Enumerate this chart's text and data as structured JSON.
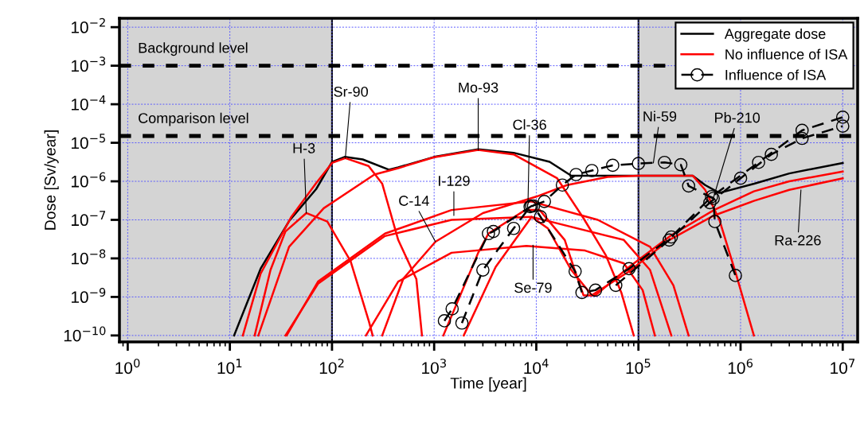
{
  "chart_data": {
    "type": "line",
    "xlabel": "Time [year]",
    "ylabel": "Dose [Sv/year]",
    "log": "xy",
    "grid": true,
    "legend": "top right",
    "xlim": [
      0.83,
      14000000
    ],
    "ylim": [
      6.8e-11,
      0.017
    ],
    "xticks": [
      {
        "value": 1,
        "label": "10$^{0}$"
      },
      {
        "value": 10,
        "label": "10$^{1}$"
      },
      {
        "value": 100,
        "label": "10$^{2}$"
      },
      {
        "value": 1000,
        "label": "10$^{3}$"
      },
      {
        "value": 10000,
        "label": "10$^{4}$"
      },
      {
        "value": 100000,
        "label": "10$^{5}$"
      },
      {
        "value": 1000000,
        "label": "10$^{6}$"
      },
      {
        "value": 10000000,
        "label": "10$^{7}$"
      }
    ],
    "yticks": [
      {
        "value": 1e-10,
        "label": "10$^{−10}$"
      },
      {
        "value": 1e-09,
        "label": "10$^{−9}$"
      },
      {
        "value": 1e-08,
        "label": "10$^{−8}$"
      },
      {
        "value": 1e-07,
        "label": "10$^{−7}$"
      },
      {
        "value": 1e-06,
        "label": "10$^{−6}$"
      },
      {
        "value": 1e-05,
        "label": "10$^{−5}$"
      },
      {
        "value": 0.0001,
        "label": "10$^{−4}$"
      },
      {
        "value": 0.001,
        "label": "10$^{−3}$"
      },
      {
        "value": 0.01,
        "label": "10$^{−2}$"
      }
    ],
    "bands": [
      {
        "axis": "x",
        "from": 0.83,
        "to": 100,
        "color": "#d4d4d4"
      },
      {
        "axis": "x",
        "from": 100000,
        "to": 14000000,
        "color": "#d4d4d4"
      }
    ],
    "ref_lines": [
      {
        "axis": "y",
        "value": 0.001,
        "label": "Background level",
        "line_style": "dashed",
        "color": "#000000"
      },
      {
        "axis": "y",
        "value": 1.5e-05,
        "label": "Comparison level",
        "line_style": "dashed",
        "color": "#000000"
      }
    ],
    "series": [
      {
        "name": "Aggregate dose",
        "color": "#000000",
        "line_style": "solid",
        "marker": "none",
        "x": [
          11,
          20,
          38,
          70,
          100,
          133,
          200,
          360,
          445,
          1000,
          2700,
          6000,
          13500,
          22000,
          50000,
          100000,
          340000,
          450000,
          620000,
          1360000,
          3000000,
          10000000
        ],
        "values": [
          1e-10,
          5.4e-09,
          9.3e-08,
          6.3e-07,
          3.2e-06,
          4.3e-06,
          3.7e-06,
          2e-06,
          2.3e-06,
          4.3e-06,
          6.8e-06,
          5.5e-06,
          3.2e-06,
          1.4e-06,
          1.4e-06,
          1.4e-06,
          1.4e-06,
          8e-07,
          5e-07,
          8.7e-07,
          1.6e-06,
          3e-06
        ]
      },
      {
        "name": "No influence of ISA",
        "color": "#ff0000",
        "line_style": "solid",
        "marker": "none",
        "x": [
          17.5,
          25,
          35,
          56,
          90,
          152,
          230,
          250
        ],
        "values": [
          1e-10,
          5e-09,
          5e-08,
          1.5e-07,
          9e-08,
          8.5e-09,
          2.3e-10,
          1e-10
        ]
      },
      {
        "color": "#ff0000",
        "line_style": "solid",
        "marker": "none",
        "x": [
          13.4,
          20,
          40,
          70,
          100,
          135,
          228,
          310,
          445,
          670,
          760
        ],
        "values": [
          1e-10,
          4e-09,
          1.2e-07,
          9e-07,
          3e-06,
          4e-06,
          2.5e-06,
          8.7e-07,
          3e-08,
          2.9e-09,
          1e-10
        ]
      },
      {
        "color": "#ff0000",
        "line_style": "solid",
        "marker": "none",
        "x": [
          19,
          38,
          83,
          260,
          445,
          1000,
          2700,
          6000,
          16000,
          29000,
          48000,
          68000,
          90000
        ],
        "values": [
          1e-10,
          2e-08,
          2e-07,
          1.5e-06,
          2.2e-06,
          4.2e-06,
          6.5e-06,
          5e-06,
          1.2e-06,
          1.1e-07,
          1.2e-08,
          1.3e-09,
          1e-10
        ]
      },
      {
        "color": "#ff0000",
        "line_style": "solid",
        "marker": "none",
        "x": [
          36,
          73,
          330,
          1480,
          8900,
          40000,
          130000,
          220000,
          310000
        ],
        "values": [
          1e-10,
          2.5e-09,
          4.4e-08,
          1.8e-07,
          3e-07,
          1e-07,
          2e-08,
          2e-09,
          1e-10
        ]
      },
      {
        "color": "#ff0000",
        "line_style": "solid",
        "marker": "none",
        "x": [
          35,
          73,
          330,
          1480,
          8900,
          72000,
          130000,
          210000
        ],
        "values": [
          1e-10,
          2.2e-09,
          3.8e-08,
          1e-07,
          1.2e-07,
          3e-08,
          5e-09,
          1e-10
        ]
      },
      {
        "color": "#ff0000",
        "line_style": "solid",
        "marker": "none",
        "x": [
          215,
          445,
          1480,
          8000,
          30000,
          72000,
          110000,
          145000
        ],
        "values": [
          1e-10,
          2.5e-09,
          1.4e-08,
          2.1e-08,
          1.6e-08,
          7.4e-09,
          1.5e-09,
          1e-10
        ]
      },
      {
        "color": "#ff0000",
        "line_style": "solid",
        "marker": "none",
        "x": [
          310,
          500,
          1030,
          3000,
          10000,
          20000,
          50000,
          100000,
          340000,
          450000,
          620000,
          900000,
          1350000
        ],
        "values": [
          1e-10,
          3e-09,
          2.7e-08,
          1.5e-07,
          4e-07,
          8e-07,
          1.3e-06,
          1.4e-06,
          1.4e-06,
          6e-07,
          1e-07,
          4e-09,
          1e-10
        ]
      },
      {
        "color": "#ff0000",
        "line_style": "solid",
        "marker": "none",
        "x": [
          1230,
          2700,
          3400,
          7800,
          10800,
          19000,
          24000,
          29000,
          38000,
          81000,
          210000,
          550000,
          1350000,
          3000000,
          10000000
        ],
        "values": [
          1e-10,
          1.4e-08,
          4.4e-08,
          1.8e-07,
          1.8e-07,
          3e-08,
          4.6e-09,
          1.1e-09,
          1.1e-09,
          6e-09,
          4e-08,
          1.8e-07,
          5.5e-07,
          1e-06,
          1.8e-06
        ]
      },
      {
        "color": "#ff0000",
        "line_style": "solid",
        "marker": "none",
        "x": [
          1950,
          4000,
          9000,
          13000,
          22000,
          35000,
          80000,
          200000,
          550000,
          1350000,
          3000000,
          10000000
        ],
        "values": [
          1e-10,
          6e-09,
          1.2e-07,
          6e-08,
          5e-09,
          1.1e-09,
          4.5e-09,
          3e-08,
          1.3e-07,
          3.1e-07,
          6e-07,
          1.2e-06
        ]
      },
      {
        "name": "Influence of ISA",
        "color": "#000000",
        "line_style": "dashed",
        "marker": "circle",
        "x": [
          1260,
          1500,
          3400,
          3800,
          9000,
          9400,
          11000,
          24000,
          28000,
          38000,
          81000,
          210000,
          520000,
          1500000,
          4000000,
          10000000
        ],
        "values": [
          2.4e-10,
          4.9e-10,
          4.4e-08,
          5e-08,
          2.3e-07,
          2.3e-07,
          1.2e-07,
          4.6e-09,
          1.3e-09,
          1.5e-09,
          5.4e-09,
          3.6e-08,
          4e-07,
          3.1e-06,
          2.1e-05,
          4.6e-05
        ]
      },
      {
        "color": "#000000",
        "line_style": "dashed",
        "marker": "circle",
        "x": [
          1870,
          3000,
          6000,
          8700,
          12000,
          18000,
          24500,
          35000,
          56000,
          100000,
          180000,
          260000,
          310000,
          540000,
          560000,
          890000
        ],
        "values": [
          2.1e-10,
          5e-09,
          6e-08,
          2.2e-07,
          3e-07,
          8e-07,
          1.5e-06,
          1.9e-06,
          2.6e-06,
          2.9e-06,
          3.1e-06,
          2.7e-06,
          7.6e-07,
          3.6e-07,
          9e-08,
          3.6e-09
        ]
      },
      {
        "color": "#000000",
        "line_style": "dashed",
        "marker": "circle",
        "x": [
          60000,
          200000,
          500000,
          1000000,
          2000000,
          4000000,
          10000000
        ],
        "values": [
          2e-09,
          3e-08,
          2.8e-07,
          1.2e-06,
          5e-06,
          1.3e-05,
          2.7e-05
        ]
      }
    ],
    "annotations": [
      {
        "text": "H-3",
        "x": 56,
        "y": 1.5e-07
      },
      {
        "text": "Sr-90",
        "x": 135,
        "y": 4e-06
      },
      {
        "text": "Mo-93",
        "x": 2700,
        "y": 6.5e-06
      },
      {
        "text": "Cl-36",
        "x": 8300,
        "y": 3e-07
      },
      {
        "text": "I-129",
        "x": 1560,
        "y": 1.3e-07
      },
      {
        "text": "C-14",
        "x": 1030,
        "y": 2.7e-08
      },
      {
        "text": "Se-79",
        "x": 9300,
        "y": 2.2e-08
      },
      {
        "text": "Ni-59",
        "x": 140000,
        "y": 3e-06
      },
      {
        "text": "Pb-210",
        "x": 540000,
        "y": 3.6e-07
      },
      {
        "text": "Ra-226",
        "x": 3900000,
        "y": 6e-07
      }
    ]
  }
}
